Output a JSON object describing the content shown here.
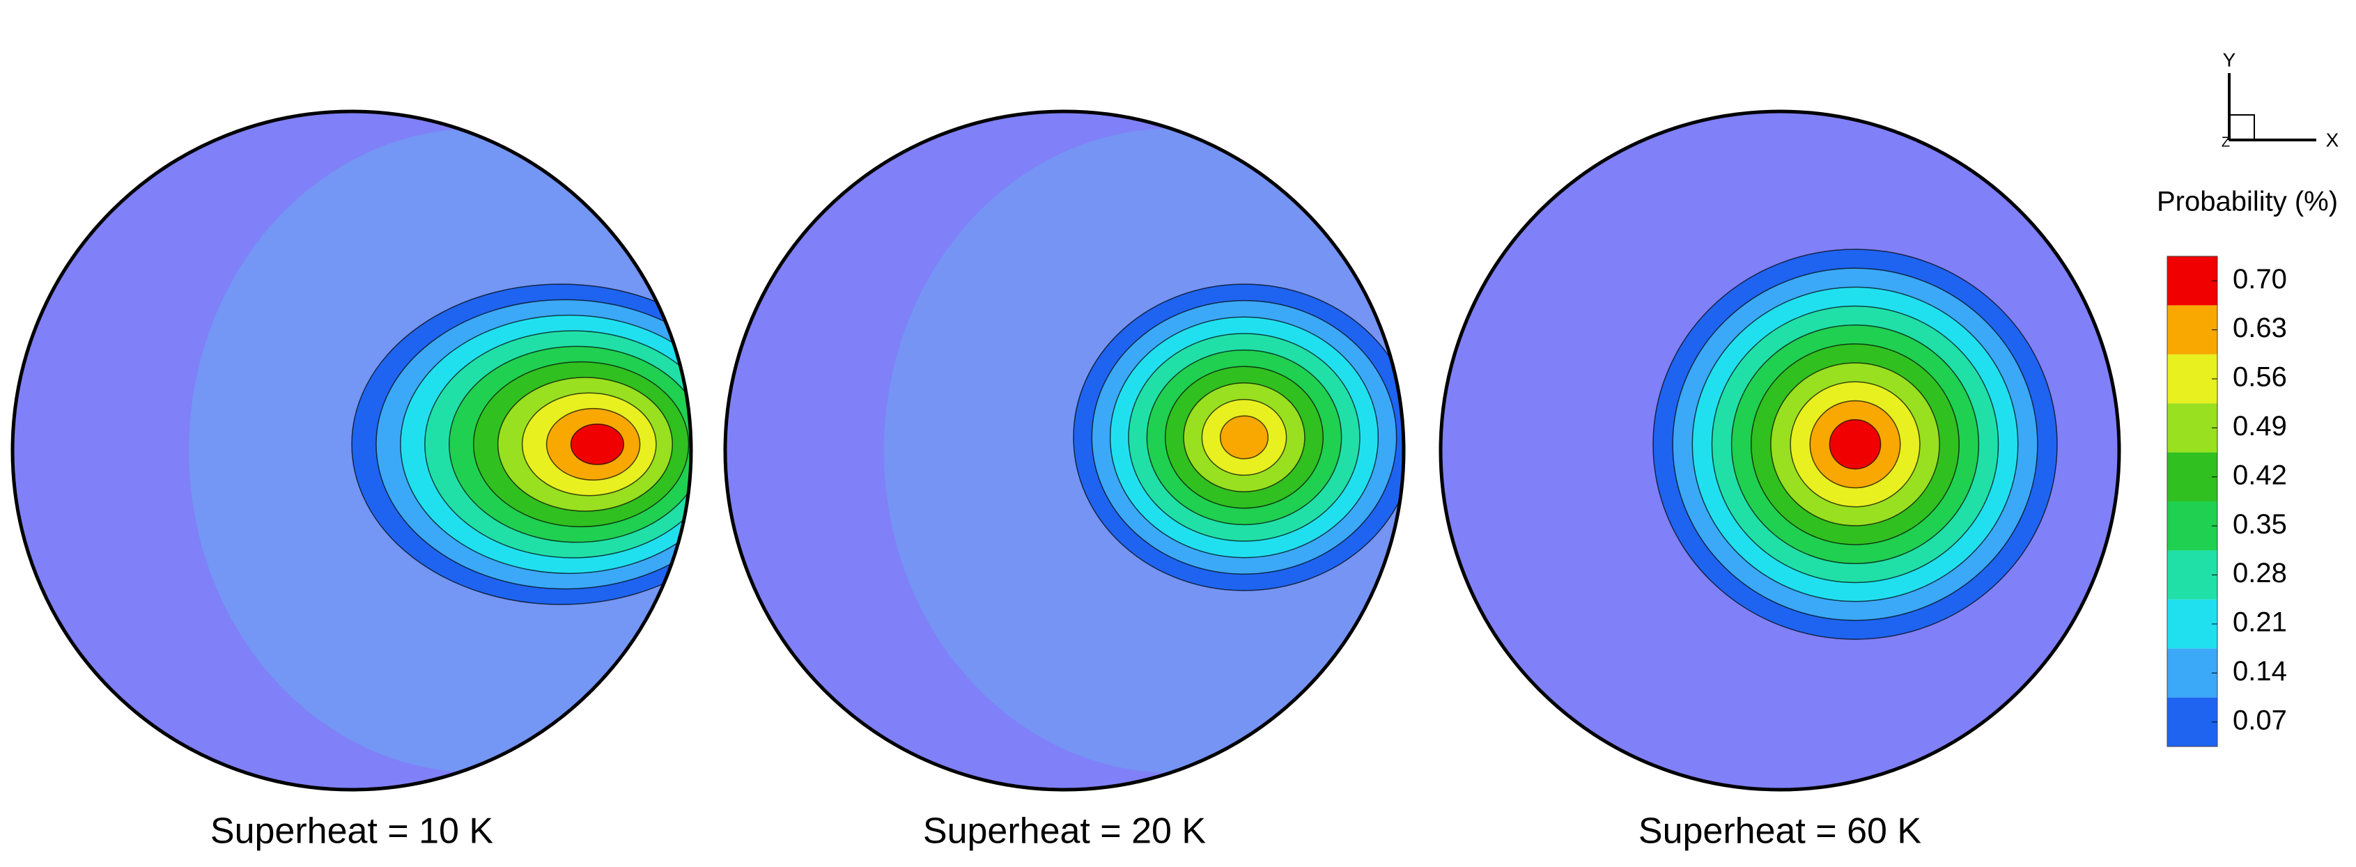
{
  "chart_data": {
    "type": "contour",
    "panels": [
      {
        "title": "Superheat = 10 K"
      },
      {
        "title": "Superheat = 20 K"
      },
      {
        "title": "Superheat = 60 K"
      }
    ],
    "axes_triad": {
      "x": "X",
      "y": "Y",
      "z": "Z"
    },
    "colorbar": {
      "title": "Probability (%)",
      "ylim": [
        0.035,
        0.735
      ],
      "yticks": [
        0.07,
        0.14,
        0.21,
        0.28,
        0.35,
        0.42,
        0.49,
        0.56,
        0.63,
        {
          "value": 0.7,
          "label": "0.70"
        }
      ],
      "colors": [
        "#1e64f0",
        "#3ca8f8",
        "#20e0f0",
        "#20e0a8",
        "#20d050",
        "#30c020",
        "#98e020",
        "#e8f020",
        "#f8a800",
        "#f00000"
      ]
    }
  }
}
